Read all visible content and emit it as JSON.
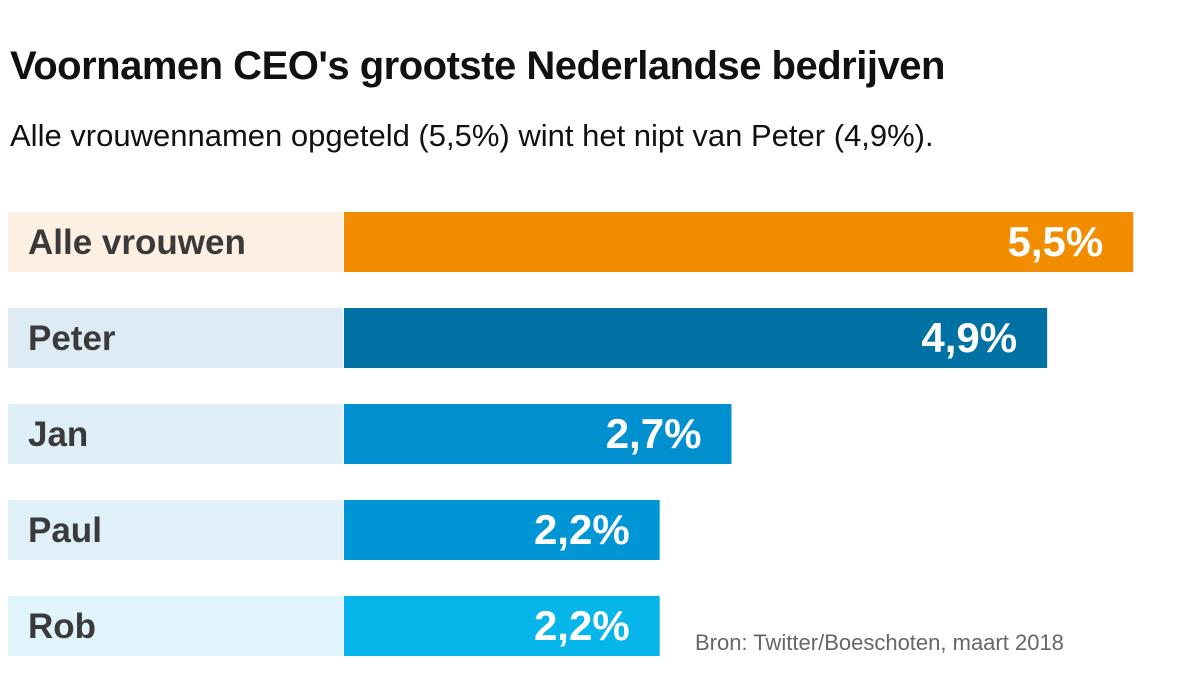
{
  "chart_data": {
    "type": "bar",
    "orientation": "horizontal",
    "title": "Voornamen CEO's grootste Nederlandse bedrijven",
    "subtitle": "Alle vrouwennamen opgeteld (5,5%) wint het nipt van Peter (4,9%).",
    "categories": [
      "Alle vrouwen",
      "Peter",
      "Jan",
      "Paul",
      "Rob"
    ],
    "values": [
      5.5,
      4.9,
      2.7,
      2.2,
      2.2
    ],
    "value_labels": [
      "5,5%",
      "4,9%",
      "2,7%",
      "2,2%",
      "2,2%"
    ],
    "unit": "%",
    "xlim": [
      0,
      5.5
    ],
    "bar_colors": [
      "#F28C00",
      "#0071A3",
      "#0090CF",
      "#0096D6",
      "#06B6EB"
    ],
    "label_bg_colors": [
      "#FDF0E2",
      "#DDEBF4",
      "#DFEFF8",
      "#DFF0F9",
      "#DFF4FB"
    ],
    "source": "Bron: Twitter/Boeschoten, maart 2018",
    "grid": false
  }
}
